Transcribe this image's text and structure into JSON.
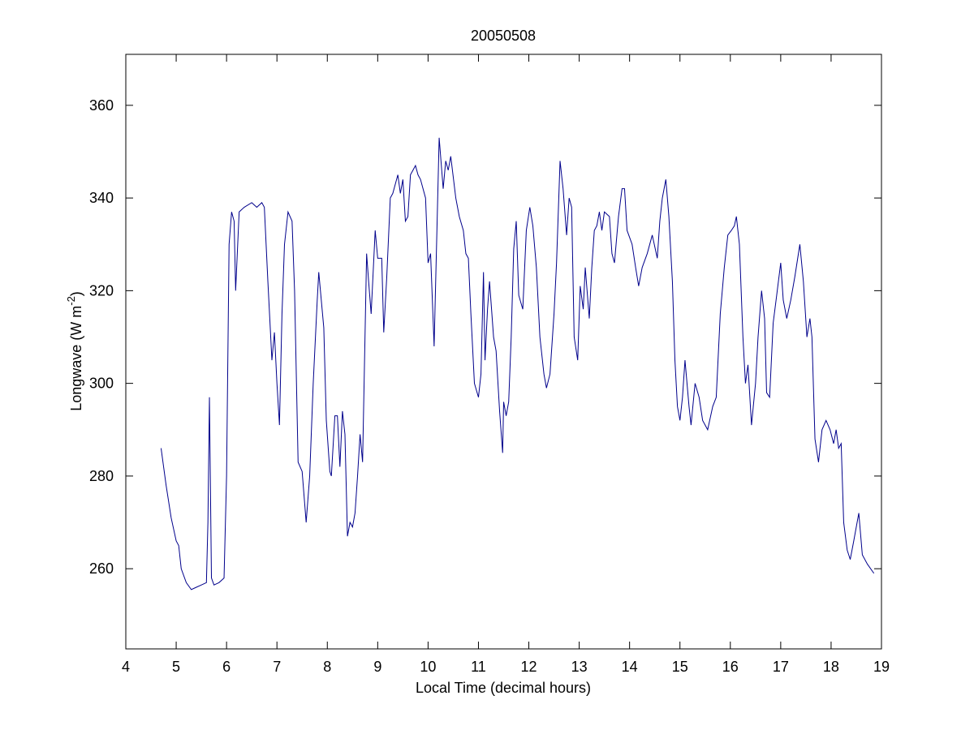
{
  "chart_data": {
    "type": "line",
    "title": "20050508",
    "xlabel": "Local Time (decimal hours)",
    "ylabel": [
      "Longwave (W m",
      "-2",
      ")"
    ],
    "xlim": [
      4,
      19
    ],
    "xticks": [
      4,
      5,
      6,
      7,
      8,
      9,
      10,
      11,
      12,
      13,
      14,
      15,
      16,
      17,
      18,
      19
    ],
    "ylim": [
      242.7,
      371
    ],
    "yticks": [
      260,
      280,
      300,
      320,
      340,
      360
    ],
    "x": [
      4.7,
      4.8,
      4.9,
      5.0,
      5.05,
      5.1,
      5.2,
      5.3,
      5.4,
      5.5,
      5.6,
      5.63,
      5.66,
      5.7,
      5.75,
      5.85,
      5.95,
      6.0,
      6.05,
      6.1,
      6.15,
      6.18,
      6.25,
      6.35,
      6.5,
      6.6,
      6.7,
      6.75,
      6.82,
      6.9,
      6.95,
      7.0,
      7.05,
      7.1,
      7.15,
      7.22,
      7.3,
      7.35,
      7.42,
      7.5,
      7.58,
      7.65,
      7.72,
      7.8,
      7.83,
      7.88,
      7.93,
      7.98,
      8.05,
      8.08,
      8.15,
      8.2,
      8.25,
      8.3,
      8.35,
      8.4,
      8.45,
      8.5,
      8.55,
      8.6,
      8.65,
      8.7,
      8.78,
      8.82,
      8.87,
      8.95,
      9.0,
      9.08,
      9.12,
      9.18,
      9.25,
      9.3,
      9.4,
      9.45,
      9.5,
      9.55,
      9.6,
      9.65,
      9.75,
      9.8,
      9.85,
      9.95,
      10.0,
      10.05,
      10.12,
      10.18,
      10.22,
      10.3,
      10.35,
      10.4,
      10.45,
      10.55,
      10.62,
      10.7,
      10.75,
      10.8,
      10.85,
      10.92,
      11.0,
      11.05,
      11.1,
      11.13,
      11.18,
      11.22,
      11.3,
      11.35,
      11.42,
      11.48,
      11.5,
      11.55,
      11.6,
      11.65,
      11.7,
      11.75,
      11.8,
      11.88,
      11.95,
      12.02,
      12.08,
      12.15,
      12.22,
      12.3,
      12.35,
      12.42,
      12.5,
      12.55,
      12.62,
      12.68,
      12.75,
      12.8,
      12.85,
      12.9,
      12.97,
      13.02,
      13.08,
      13.12,
      13.2,
      13.25,
      13.3,
      13.35,
      13.4,
      13.45,
      13.5,
      13.6,
      13.65,
      13.7,
      13.78,
      13.85,
      13.9,
      13.95,
      14.05,
      14.12,
      14.18,
      14.25,
      14.35,
      14.45,
      14.55,
      14.6,
      14.65,
      14.72,
      14.78,
      14.85,
      14.9,
      14.95,
      15.0,
      15.05,
      15.1,
      15.18,
      15.22,
      15.3,
      15.38,
      15.45,
      15.55,
      15.65,
      15.72,
      15.8,
      15.88,
      15.95,
      16.02,
      16.08,
      16.12,
      16.18,
      16.25,
      16.3,
      16.35,
      16.42,
      16.5,
      16.55,
      16.62,
      16.68,
      16.72,
      16.78,
      16.85,
      16.92,
      17.0,
      17.05,
      17.12,
      17.2,
      17.28,
      17.38,
      17.45,
      17.52,
      17.58,
      17.62,
      17.68,
      17.75,
      17.82,
      17.9,
      17.98,
      18.05,
      18.1,
      18.15,
      18.2,
      18.25,
      18.32,
      18.38,
      18.45,
      18.55,
      18.62,
      18.72,
      18.85
    ],
    "series": [
      {
        "color": "#00008b",
        "values": [
          286,
          278,
          271,
          266,
          265,
          260,
          257,
          255.5,
          256,
          256.5,
          257,
          270,
          297,
          258,
          256.5,
          257,
          258,
          280,
          330,
          337,
          335,
          320,
          337,
          338,
          339,
          338,
          339,
          338,
          322,
          305,
          311,
          300,
          291,
          315,
          330,
          337,
          335,
          320,
          283,
          281,
          270,
          280,
          300,
          318,
          324,
          318,
          312,
          292,
          281,
          280,
          293,
          293,
          282,
          294,
          289,
          267,
          270,
          269,
          272,
          280,
          289,
          283,
          328,
          322,
          315,
          333,
          327,
          327,
          311,
          323,
          340,
          341,
          345,
          341,
          344,
          335,
          336,
          345,
          347,
          345,
          344,
          340,
          326,
          328,
          308,
          335,
          353,
          342,
          348,
          346,
          349,
          340,
          336,
          333,
          328,
          327,
          315,
          300,
          297,
          302,
          324,
          305,
          316,
          322,
          310,
          307,
          294,
          285,
          296,
          293,
          296,
          310,
          329,
          335,
          319,
          316,
          333,
          338,
          334,
          325,
          310,
          302,
          299,
          302,
          315,
          326,
          348,
          342,
          332,
          340,
          338,
          310,
          305,
          321,
          316,
          325,
          314,
          325,
          333,
          334,
          337,
          333,
          337,
          336,
          328,
          326,
          336,
          342,
          342,
          333,
          330,
          325,
          321,
          325,
          328,
          332,
          327,
          335,
          340,
          344,
          336,
          322,
          305,
          295,
          292,
          297,
          305,
          295,
          291,
          300,
          297,
          292,
          290,
          295,
          297,
          315,
          325,
          332,
          333,
          334,
          336,
          330,
          310,
          300,
          304,
          291,
          300,
          310,
          320,
          314,
          298,
          297,
          313,
          319,
          326,
          318,
          314,
          318,
          323,
          330,
          322,
          310,
          314,
          310,
          288,
          283,
          290,
          292,
          290,
          287,
          290,
          286,
          287,
          270,
          264,
          262,
          266,
          272,
          263,
          261,
          259
        ]
      }
    ]
  }
}
